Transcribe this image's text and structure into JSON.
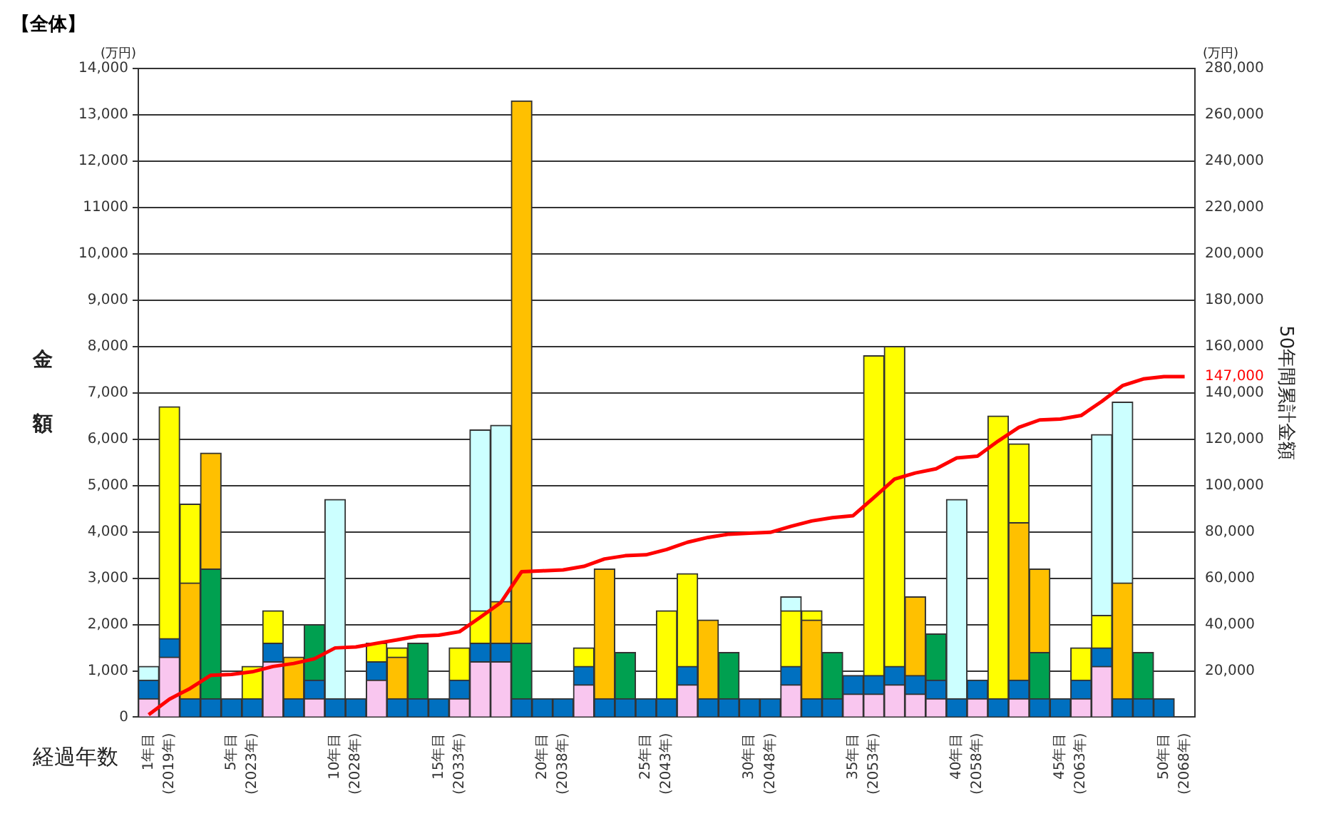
{
  "chart_data": {
    "type": "bar",
    "title": "【全体】",
    "xlabel": "経過年数",
    "ylabel": "金額",
    "y2label": "50年間累計金額",
    "annotations": [
      "(万円)",
      "(万円)"
    ],
    "categories": [
      "1年目",
      "(2019年)",
      null,
      null,
      "5年目",
      "(2023年)",
      null,
      null,
      null,
      "10年目",
      "(2028年)",
      null,
      null,
      null,
      "15年目",
      "(2033年)",
      null,
      null,
      null,
      "20年目",
      "(2038年)",
      null,
      null,
      null,
      "25年目",
      "(2043年)",
      null,
      null,
      null,
      "30年目",
      "(2048年)",
      null,
      null,
      null,
      "35年目",
      "(2053年)",
      null,
      null,
      null,
      "40年目",
      "(2058年)",
      null,
      null,
      null,
      "45年目",
      "(2063年)",
      null,
      null,
      null,
      "50年目",
      "(2068年)"
    ],
    "stacked": true,
    "grid": "y",
    "ylim": [
      0,
      14000
    ],
    "yticks": [
      0,
      {
        "value": 1000,
        "label": "1,000"
      },
      {
        "value": 2000,
        "label": "2,000"
      },
      {
        "value": 3000,
        "label": "3,000"
      },
      {
        "value": 4000,
        "label": "4,000"
      },
      {
        "value": 5000,
        "label": "5,000"
      },
      {
        "value": 6000,
        "label": "6,000"
      },
      {
        "value": 7000,
        "label": "7,000"
      },
      {
        "value": 8000,
        "label": "8,000"
      },
      {
        "value": 9000,
        "label": "9,000"
      },
      {
        "value": 10000,
        "label": "10,000"
      },
      11000,
      {
        "value": 12000,
        "label": "12,000"
      },
      {
        "value": 13000,
        "label": "13,000"
      },
      {
        "value": 14000,
        "label": "14,000"
      }
    ],
    "y2lim": [
      0,
      280000
    ],
    "y2ticks": [
      {
        "value": 20000,
        "label": "20,000"
      },
      {
        "value": 40000,
        "label": "40,000"
      },
      {
        "value": 60000,
        "label": "60,000"
      },
      {
        "value": 80000,
        "label": "80,000"
      },
      {
        "value": 100000,
        "label": "100,000"
      },
      {
        "value": 120000,
        "label": "120,000"
      },
      {
        "value": 140000,
        "label": "140,000"
      },
      {
        "value": 147000,
        "label": "147,000"
      },
      {
        "value": 160000,
        "label": "160,000"
      },
      {
        "value": 180000,
        "label": "180,000"
      },
      {
        "value": 200000,
        "label": "200,000"
      },
      {
        "value": 220000,
        "label": "220,000"
      },
      {
        "value": 240000,
        "label": "240,000"
      },
      {
        "value": 260000,
        "label": "260,000"
      },
      {
        "value": 280000,
        "label": "280,000"
      }
    ],
    "series": [
      {
        "color": "#f9c6ef",
        "values": [
          400,
          1300,
          null,
          null,
          null,
          null,
          1200,
          null,
          400,
          null,
          null,
          800,
          null,
          null,
          null,
          400,
          1200,
          1200,
          null,
          null,
          null,
          700,
          null,
          null,
          null,
          null,
          700,
          null,
          null,
          null,
          null,
          700,
          null,
          null,
          500,
          500,
          700,
          500,
          400,
          null,
          400,
          null,
          400,
          null,
          null,
          400,
          1100,
          null,
          null,
          null,
          null
        ]
      },
      {
        "color": "#0070c0",
        "values": [
          400,
          400,
          400,
          400,
          400,
          400,
          400,
          400,
          400,
          400,
          400,
          400,
          400,
          400,
          400,
          400,
          400,
          400,
          400,
          400,
          400,
          400,
          400,
          400,
          400,
          400,
          400,
          400,
          400,
          400,
          400,
          400,
          400,
          400,
          400,
          400,
          400,
          400,
          400,
          400,
          400,
          400,
          400,
          400,
          400,
          400,
          400,
          400,
          400,
          400,
          null
        ]
      },
      {
        "color": "#00a050",
        "values": [
          null,
          null,
          null,
          2800,
          null,
          null,
          null,
          null,
          1200,
          null,
          null,
          null,
          null,
          1200,
          null,
          null,
          null,
          null,
          1200,
          null,
          null,
          null,
          null,
          1000,
          null,
          null,
          null,
          null,
          1000,
          null,
          null,
          null,
          null,
          1000,
          null,
          null,
          null,
          null,
          1000,
          null,
          null,
          null,
          null,
          1000,
          null,
          null,
          null,
          null,
          1000,
          null,
          null
        ]
      },
      {
        "color": "#ffc000",
        "values": [
          null,
          null,
          2500,
          2500,
          null,
          null,
          null,
          900,
          null,
          null,
          null,
          null,
          900,
          null,
          null,
          null,
          null,
          900,
          11700,
          null,
          null,
          null,
          2800,
          null,
          null,
          null,
          null,
          1700,
          null,
          null,
          null,
          null,
          1700,
          null,
          null,
          null,
          null,
          1700,
          null,
          null,
          null,
          null,
          3400,
          1800,
          null,
          null,
          null,
          2500,
          null,
          null,
          null
        ]
      },
      {
        "color": "#ffff00",
        "values": [
          null,
          5000,
          1700,
          null,
          null,
          700,
          700,
          null,
          null,
          null,
          null,
          400,
          200,
          null,
          null,
          700,
          700,
          null,
          null,
          null,
          null,
          400,
          null,
          null,
          null,
          1900,
          2000,
          null,
          null,
          null,
          null,
          1200,
          200,
          null,
          null,
          6900,
          6900,
          null,
          null,
          null,
          null,
          6100,
          1700,
          null,
          null,
          700,
          700,
          null,
          null,
          null,
          null
        ]
      },
      {
        "color": "#ccffff",
        "values": [
          300,
          null,
          null,
          null,
          null,
          null,
          null,
          null,
          null,
          4300,
          null,
          null,
          null,
          null,
          null,
          null,
          3900,
          3800,
          null,
          null,
          null,
          null,
          null,
          null,
          null,
          null,
          null,
          null,
          null,
          null,
          null,
          300,
          null,
          null,
          null,
          null,
          null,
          null,
          null,
          4300,
          null,
          null,
          null,
          null,
          null,
          null,
          3900,
          3900,
          null,
          null,
          null
        ]
      },
      {
        "type": "line",
        "axis": "y2",
        "color": "#ff0000",
        "values": [
          1100,
          7800,
          12400,
          18100,
          18500,
          19600,
          21900,
          23200,
          25200,
          29900,
          30300,
          31900,
          33400,
          35000,
          35400,
          36900,
          43100,
          49500,
          62800,
          63200,
          63600,
          65100,
          68300,
          69700,
          70100,
          72400,
          75500,
          77600,
          79000,
          79400,
          79800,
          82400,
          84700,
          86100,
          87000,
          94800,
          102800,
          105400,
          107200,
          111900,
          112700,
          119200,
          125100,
          128300,
          128700,
          130200,
          136300,
          143100,
          146000,
          147000,
          147000
        ]
      }
    ]
  }
}
